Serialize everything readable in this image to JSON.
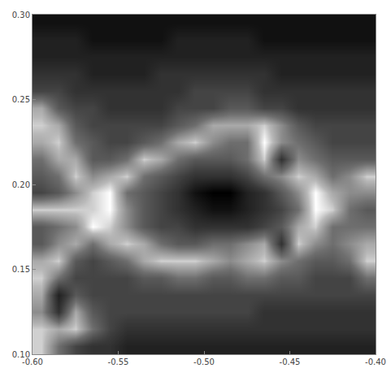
{
  "chart_data": {
    "type": "heatmap",
    "x": [
      -0.595,
      -0.585,
      -0.575,
      -0.565,
      -0.555,
      -0.545,
      -0.535,
      -0.525,
      -0.515,
      -0.505,
      -0.495,
      -0.485,
      -0.475,
      -0.465,
      -0.455,
      -0.445,
      -0.435,
      -0.425,
      -0.415,
      -0.405
    ],
    "y": [
      0.105,
      0.115,
      0.125,
      0.135,
      0.145,
      0.155,
      0.165,
      0.175,
      0.185,
      0.195,
      0.205,
      0.215,
      0.225,
      0.235,
      0.245,
      0.255,
      0.265,
      0.275,
      0.285,
      0.295
    ],
    "z": [
      [
        9,
        6,
        4,
        3,
        3,
        2,
        2,
        2,
        2,
        2,
        2,
        2,
        2,
        2,
        2,
        2,
        2,
        2,
        2,
        2
      ],
      [
        9,
        8,
        9,
        6,
        4,
        3,
        3,
        3,
        3,
        3,
        3,
        3,
        3,
        3,
        3,
        3,
        3,
        3,
        3,
        3
      ],
      [
        7,
        3,
        8,
        5,
        4,
        4,
        4,
        4,
        4,
        4,
        4,
        4,
        4,
        3,
        3,
        3,
        3,
        3,
        3,
        3
      ],
      [
        8,
        2,
        5,
        4,
        4,
        4,
        4,
        4,
        4,
        4,
        4,
        4,
        4,
        4,
        4,
        4,
        4,
        4,
        4,
        4
      ],
      [
        9,
        6,
        4,
        4,
        4,
        4,
        5,
        5,
        6,
        6,
        5,
        5,
        6,
        6,
        5,
        5,
        4,
        4,
        4,
        6
      ],
      [
        8,
        9,
        5,
        4,
        5,
        6,
        8,
        9,
        9,
        9,
        8,
        7,
        8,
        9,
        7,
        6,
        5,
        5,
        6,
        9
      ],
      [
        5,
        7,
        8,
        6,
        8,
        9,
        8,
        6,
        5,
        5,
        6,
        6,
        7,
        8,
        3,
        9,
        7,
        6,
        7,
        8
      ],
      [
        5,
        6,
        7,
        10,
        9,
        7,
        5,
        4,
        4,
        3,
        3,
        3,
        3,
        4,
        5,
        8,
        9,
        6,
        6,
        6
      ],
      [
        9,
        9,
        9,
        9,
        10,
        7,
        5,
        4,
        3,
        2,
        1,
        1,
        2,
        3,
        4,
        6,
        10,
        9,
        6,
        5
      ],
      [
        4,
        5,
        7,
        9,
        10,
        6,
        5,
        4,
        3,
        1,
        0,
        0,
        2,
        3,
        5,
        7,
        10,
        8,
        7,
        7
      ],
      [
        5,
        6,
        9,
        7,
        8,
        9,
        6,
        5,
        4,
        3,
        3,
        3,
        4,
        6,
        7,
        9,
        8,
        6,
        7,
        9
      ],
      [
        6,
        8,
        8,
        5,
        5,
        6,
        9,
        8,
        6,
        5,
        5,
        5,
        6,
        9,
        3,
        7,
        6,
        5,
        5,
        5
      ],
      [
        8,
        9,
        6,
        5,
        4,
        4,
        5,
        6,
        8,
        9,
        7,
        6,
        6,
        10,
        7,
        6,
        5,
        4,
        4,
        4
      ],
      [
        9,
        8,
        5,
        4,
        4,
        4,
        4,
        4,
        5,
        6,
        8,
        8,
        8,
        9,
        7,
        5,
        4,
        4,
        4,
        4
      ],
      [
        8,
        5,
        4,
        4,
        3,
        3,
        3,
        3,
        4,
        4,
        4,
        5,
        5,
        4,
        4,
        3,
        3,
        3,
        3,
        3
      ],
      [
        4,
        4,
        3,
        3,
        3,
        3,
        3,
        3,
        3,
        4,
        4,
        4,
        4,
        3,
        3,
        3,
        3,
        3,
        3,
        3
      ],
      [
        3,
        3,
        3,
        2,
        2,
        2,
        2,
        3,
        3,
        3,
        3,
        3,
        3,
        3,
        2,
        2,
        2,
        2,
        2,
        2
      ],
      [
        2,
        2,
        2,
        2,
        2,
        2,
        2,
        2,
        2,
        2,
        2,
        2,
        2,
        2,
        2,
        2,
        2,
        2,
        2,
        2
      ],
      [
        2,
        2,
        2,
        1,
        1,
        1,
        1,
        1,
        2,
        2,
        2,
        2,
        2,
        1,
        1,
        1,
        1,
        1,
        1,
        1
      ],
      [
        1,
        1,
        1,
        1,
        1,
        1,
        1,
        1,
        1,
        1,
        1,
        1,
        1,
        1,
        1,
        1,
        1,
        1,
        1,
        1
      ]
    ],
    "zlim": [
      0,
      10
    ],
    "xlim": [
      -0.6,
      -0.4
    ],
    "ylim": [
      0.1,
      0.3
    ],
    "xticks": [
      {
        "value": -0.6,
        "label": "-0.60"
      },
      -0.55,
      {
        "value": -0.5,
        "label": "-0.50"
      },
      -0.45,
      {
        "value": -0.4,
        "label": "-0.40"
      }
    ],
    "yticks": [
      {
        "value": 0.1,
        "label": "0.10"
      },
      0.15,
      {
        "value": 0.2,
        "label": "0.20"
      },
      0.25,
      {
        "value": 0.3,
        "label": "0.30"
      }
    ]
  }
}
